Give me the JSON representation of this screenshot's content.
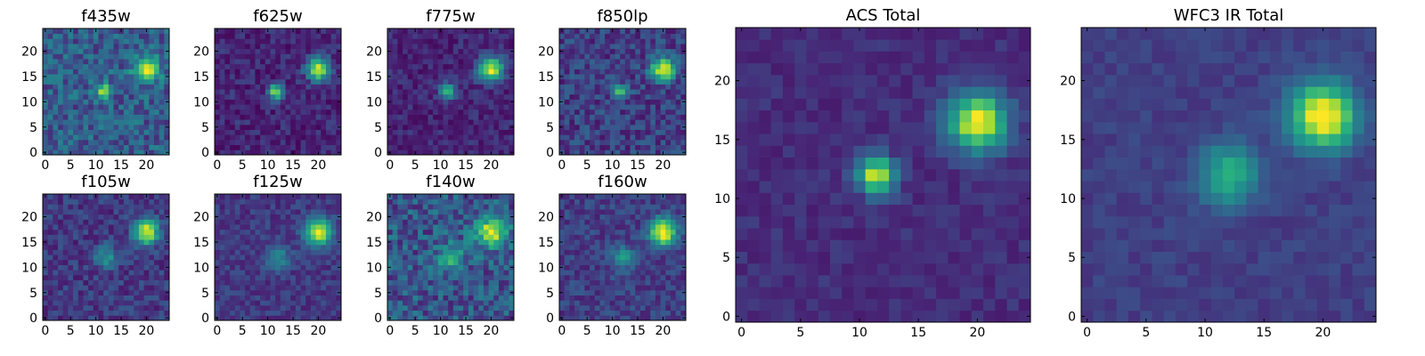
{
  "chart_data": {
    "type": "heatmap",
    "colormap": "viridis",
    "grid": false,
    "grid_size": 25,
    "panels": [
      {
        "title": "f435w",
        "xticks": [
          0,
          5,
          10,
          15,
          20
        ],
        "yticks": [
          0,
          5,
          10,
          15,
          20
        ],
        "xlim": [
          -0.5,
          24.5
        ],
        "ylim": [
          -0.5,
          24.5
        ],
        "sources": [
          {
            "x": 20,
            "y": 16.5,
            "amp": 0.72,
            "sigma": 1.6
          },
          {
            "x": 11.5,
            "y": 12,
            "amp": 0.7,
            "sigma": 1.0
          }
        ],
        "noise": 0.3,
        "background": 0.3
      },
      {
        "title": "f625w",
        "xticks": [
          0,
          5,
          10,
          15,
          20
        ],
        "yticks": [
          0,
          5,
          10,
          15,
          20
        ],
        "xlim": [
          -0.5,
          24.5
        ],
        "ylim": [
          -0.5,
          24.5
        ],
        "sources": [
          {
            "x": 20,
            "y": 16.5,
            "amp": 0.8,
            "sigma": 1.6
          },
          {
            "x": 11.5,
            "y": 12,
            "amp": 0.75,
            "sigma": 1.0
          }
        ],
        "noise": 0.2,
        "background": 0.12
      },
      {
        "title": "f775w",
        "xticks": [
          0,
          5,
          10,
          15,
          20
        ],
        "yticks": [
          0,
          5,
          10,
          15,
          20
        ],
        "xlim": [
          -0.5,
          24.5
        ],
        "ylim": [
          -0.5,
          24.5
        ],
        "sources": [
          {
            "x": 20,
            "y": 16.5,
            "amp": 0.82,
            "sigma": 1.7
          },
          {
            "x": 11.5,
            "y": 12,
            "amp": 0.55,
            "sigma": 1.1
          }
        ],
        "noise": 0.18,
        "background": 0.12
      },
      {
        "title": "f850lp",
        "xticks": [
          0,
          5,
          10,
          15,
          20
        ],
        "yticks": [
          0,
          5,
          10,
          15,
          20
        ],
        "xlim": [
          -0.5,
          24.5
        ],
        "ylim": [
          -0.5,
          24.5
        ],
        "sources": [
          {
            "x": 20,
            "y": 16.5,
            "amp": 0.72,
            "sigma": 1.7
          },
          {
            "x": 11.5,
            "y": 12,
            "amp": 0.45,
            "sigma": 1.1
          }
        ],
        "noise": 0.25,
        "background": 0.2
      },
      {
        "title": "f105w",
        "xticks": [
          0,
          5,
          10,
          15,
          20
        ],
        "yticks": [
          0,
          5,
          10,
          15,
          20
        ],
        "xlim": [
          -0.5,
          24.5
        ],
        "ylim": [
          -0.5,
          24.5
        ],
        "sources": [
          {
            "x": 20,
            "y": 17,
            "amp": 0.8,
            "sigma": 1.7
          },
          {
            "x": 12,
            "y": 12,
            "amp": 0.35,
            "sigma": 1.6
          }
        ],
        "noise": 0.2,
        "background": 0.18
      },
      {
        "title": "f125w",
        "xticks": [
          0,
          5,
          10,
          15,
          20
        ],
        "yticks": [
          0,
          5,
          10,
          15,
          20
        ],
        "xlim": [
          -0.5,
          24.5
        ],
        "ylim": [
          -0.5,
          24.5
        ],
        "sources": [
          {
            "x": 20,
            "y": 17,
            "amp": 0.82,
            "sigma": 1.8
          },
          {
            "x": 12,
            "y": 12,
            "amp": 0.3,
            "sigma": 1.7
          }
        ],
        "noise": 0.15,
        "background": 0.18
      },
      {
        "title": "f140w",
        "xticks": [
          0,
          5,
          10,
          15,
          20
        ],
        "yticks": [
          0,
          5,
          10,
          15,
          20
        ],
        "xlim": [
          -0.5,
          24.5
        ],
        "ylim": [
          -0.5,
          24.5
        ],
        "sources": [
          {
            "x": 20,
            "y": 17,
            "amp": 0.7,
            "sigma": 2.0
          },
          {
            "x": 12,
            "y": 12,
            "amp": 0.35,
            "sigma": 1.8
          }
        ],
        "noise": 0.32,
        "background": 0.28
      },
      {
        "title": "f160w",
        "xticks": [
          0,
          5,
          10,
          15,
          20
        ],
        "yticks": [
          0,
          5,
          10,
          15,
          20
        ],
        "xlim": [
          -0.5,
          24.5
        ],
        "ylim": [
          -0.5,
          24.5
        ],
        "sources": [
          {
            "x": 20,
            "y": 17,
            "amp": 0.85,
            "sigma": 1.8
          },
          {
            "x": 12,
            "y": 12,
            "amp": 0.32,
            "sigma": 1.6
          }
        ],
        "noise": 0.18,
        "background": 0.2
      },
      {
        "title": "ACS Total",
        "xticks": [
          0,
          5,
          10,
          15,
          20
        ],
        "yticks": [
          0,
          5,
          10,
          15,
          20
        ],
        "xlim": [
          -0.5,
          24.5
        ],
        "ylim": [
          -0.5,
          24.5
        ],
        "sources": [
          {
            "x": 20,
            "y": 16.5,
            "amp": 0.85,
            "sigma": 1.7
          },
          {
            "x": 11.5,
            "y": 12,
            "amp": 0.8,
            "sigma": 1.1
          }
        ],
        "noise": 0.1,
        "background": 0.15
      },
      {
        "title": "WFC3 IR Total",
        "xticks": [
          0,
          5,
          10,
          15,
          20
        ],
        "yticks": [
          0,
          5,
          10,
          15,
          20
        ],
        "xlim": [
          -0.5,
          24.5
        ],
        "ylim": [
          -0.5,
          24.5
        ],
        "sources": [
          {
            "x": 20,
            "y": 17,
            "amp": 0.85,
            "sigma": 1.9
          },
          {
            "x": 12,
            "y": 12,
            "amp": 0.45,
            "sigma": 1.8
          }
        ],
        "noise": 0.08,
        "background": 0.2
      }
    ]
  }
}
